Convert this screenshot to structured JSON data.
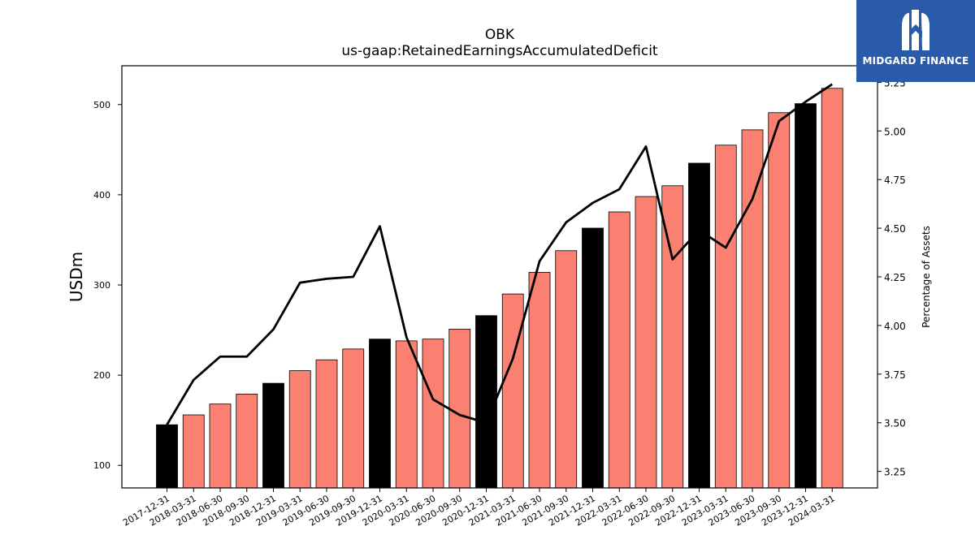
{
  "chart_data": {
    "type": "bar",
    "title": "OBK",
    "subtitle": "us-gaap:RetainedEarningsAccumulatedDeficit",
    "ylabel": "USDm",
    "ylabel_right": "Percentage of Assets",
    "ylim": [
      75,
      543
    ],
    "ylim_right": [
      3.165,
      5.335
    ],
    "yticks": [
      100,
      200,
      300,
      400,
      500
    ],
    "yticks_right": [
      "3.25",
      "3.50",
      "3.75",
      "4.00",
      "4.25",
      "4.50",
      "4.75",
      "5.00",
      "5.25"
    ],
    "categories": [
      "2017-12-31",
      "2018-03-31",
      "2018-06-30",
      "2018-09-30",
      "2018-12-31",
      "2019-03-31",
      "2019-06-30",
      "2019-09-30",
      "2019-12-31",
      "2020-03-31",
      "2020-06-30",
      "2020-09-30",
      "2020-12-31",
      "2021-03-31",
      "2021-06-30",
      "2021-09-30",
      "2021-12-31",
      "2022-03-31",
      "2022-06-30",
      "2022-09-30",
      "2022-12-31",
      "2023-03-31",
      "2023-06-30",
      "2023-09-30",
      "2023-12-31",
      "2024-03-31"
    ],
    "series": [
      {
        "type": "bar",
        "values": [
          145,
          156,
          168,
          179,
          191,
          205,
          217,
          229,
          240,
          238,
          240,
          251,
          266,
          290,
          314,
          338,
          363,
          381,
          398,
          410,
          435,
          455,
          472,
          491,
          501,
          518
        ],
        "colors": [
          "#000000",
          "#fa8072",
          "#fa8072",
          "#fa8072",
          "#000000",
          "#fa8072",
          "#fa8072",
          "#fa8072",
          "#000000",
          "#fa8072",
          "#fa8072",
          "#fa8072",
          "#000000",
          "#fa8072",
          "#fa8072",
          "#fa8072",
          "#000000",
          "#fa8072",
          "#fa8072",
          "#fa8072",
          "#000000",
          "#fa8072",
          "#fa8072",
          "#fa8072",
          "#000000",
          "#fa8072"
        ]
      },
      {
        "type": "line",
        "axis": "right",
        "values": [
          3.49,
          3.72,
          3.84,
          3.84,
          3.98,
          4.22,
          4.24,
          4.25,
          4.51,
          3.94,
          3.62,
          3.54,
          3.5,
          3.83,
          4.33,
          4.53,
          4.63,
          4.7,
          4.92,
          4.34,
          4.49,
          4.4,
          4.65,
          5.05,
          5.15,
          5.24
        ],
        "color": "#000000"
      }
    ],
    "grid": false,
    "legend": "none"
  },
  "logo": {
    "brand": "MIDGARD FINANCE",
    "icon": "midgard-m-mark-icon",
    "color": "#2a5bab"
  }
}
